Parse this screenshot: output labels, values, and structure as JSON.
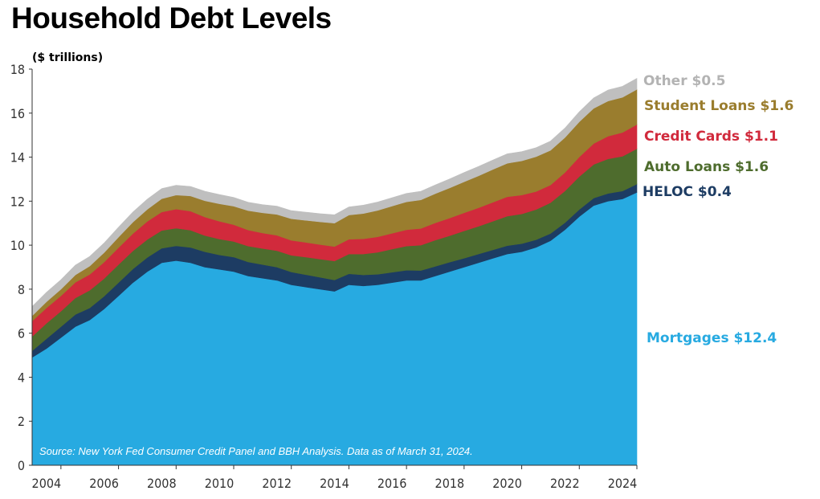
{
  "title": "Household Debt Levels",
  "units_label": "($ trillions)",
  "source_note": "Source: New York Fed Consumer Credit Panel and BBH Analysis. Data as of March 31, 2024.",
  "end_labels": [
    {
      "text": "Other $0.5",
      "color": "#b3b3b3"
    },
    {
      "text": "Student Loans $1.6",
      "color": "#9a7d2e"
    },
    {
      "text": "Credit Cards $1.1",
      "color": "#d12a3c"
    },
    {
      "text": "Auto Loans $1.6",
      "color": "#4e6c2d"
    },
    {
      "text": "HELOC  $0.4",
      "color": "#1d3c63"
    },
    {
      "text": "Mortgages $12.4",
      "color": "#27aae1"
    }
  ],
  "chart_data": {
    "type": "area",
    "stacked": true,
    "x": [
      2003.0,
      2003.5,
      2004.0,
      2004.5,
      2005.0,
      2005.5,
      2006.0,
      2006.5,
      2007.0,
      2007.5,
      2008.0,
      2008.5,
      2009.0,
      2009.5,
      2010.0,
      2010.5,
      2011.0,
      2011.5,
      2012.0,
      2012.5,
      2013.0,
      2013.5,
      2014.0,
      2014.5,
      2015.0,
      2015.5,
      2016.0,
      2016.5,
      2017.0,
      2017.5,
      2018.0,
      2018.5,
      2019.0,
      2019.5,
      2020.0,
      2020.5,
      2021.0,
      2021.5,
      2022.0,
      2022.5,
      2023.0,
      2023.5,
      2024.0
    ],
    "x_ticks": [
      2004,
      2006,
      2008,
      2010,
      2012,
      2014,
      2016,
      2018,
      2020,
      2022,
      2024
    ],
    "y_ticks": [
      0,
      2,
      4,
      6,
      8,
      10,
      12,
      14,
      16,
      18
    ],
    "xlim": [
      2003.0,
      2024.0
    ],
    "ylim": [
      0,
      18
    ],
    "xlabel": "",
    "ylabel": "($ trillions)",
    "grid": false,
    "legend": "labels at right end of each series",
    "series": [
      {
        "name": "Mortgages",
        "color": "#27aae1",
        "values": [
          4.9,
          5.3,
          5.8,
          6.3,
          6.6,
          7.1,
          7.7,
          8.3,
          8.8,
          9.2,
          9.3,
          9.2,
          9.0,
          8.9,
          8.8,
          8.6,
          8.5,
          8.4,
          8.2,
          8.1,
          8.0,
          7.9,
          8.2,
          8.15,
          8.2,
          8.3,
          8.4,
          8.4,
          8.6,
          8.8,
          9.0,
          9.2,
          9.4,
          9.6,
          9.7,
          9.9,
          10.2,
          10.7,
          11.3,
          11.8,
          12.0,
          12.1,
          12.4
        ]
      },
      {
        "name": "HELOC",
        "color": "#1d3c63",
        "values": [
          0.3,
          0.45,
          0.5,
          0.55,
          0.55,
          0.58,
          0.6,
          0.62,
          0.64,
          0.66,
          0.67,
          0.7,
          0.7,
          0.66,
          0.66,
          0.64,
          0.62,
          0.6,
          0.58,
          0.56,
          0.54,
          0.52,
          0.5,
          0.5,
          0.48,
          0.47,
          0.46,
          0.45,
          0.44,
          0.43,
          0.41,
          0.4,
          0.39,
          0.38,
          0.37,
          0.35,
          0.33,
          0.32,
          0.32,
          0.34,
          0.35,
          0.36,
          0.38
        ]
      },
      {
        "name": "Auto Loans",
        "color": "#4e6c2d",
        "values": [
          0.65,
          0.7,
          0.7,
          0.75,
          0.8,
          0.8,
          0.82,
          0.82,
          0.82,
          0.81,
          0.8,
          0.78,
          0.74,
          0.72,
          0.71,
          0.72,
          0.73,
          0.75,
          0.76,
          0.8,
          0.83,
          0.86,
          0.9,
          0.95,
          1.0,
          1.05,
          1.1,
          1.15,
          1.19,
          1.2,
          1.24,
          1.26,
          1.3,
          1.34,
          1.35,
          1.37,
          1.4,
          1.44,
          1.5,
          1.53,
          1.57,
          1.58,
          1.6
        ]
      },
      {
        "name": "Credit Cards",
        "color": "#d12a3c",
        "values": [
          0.7,
          0.7,
          0.7,
          0.71,
          0.72,
          0.75,
          0.77,
          0.79,
          0.82,
          0.84,
          0.87,
          0.87,
          0.84,
          0.81,
          0.76,
          0.73,
          0.7,
          0.7,
          0.68,
          0.67,
          0.66,
          0.66,
          0.67,
          0.69,
          0.7,
          0.72,
          0.74,
          0.76,
          0.78,
          0.8,
          0.82,
          0.84,
          0.86,
          0.88,
          0.86,
          0.82,
          0.8,
          0.84,
          0.89,
          0.95,
          1.03,
          1.08,
          1.1
        ]
      },
      {
        "name": "Student Loans",
        "color": "#9a7d2e",
        "values": [
          0.24,
          0.28,
          0.3,
          0.34,
          0.38,
          0.43,
          0.48,
          0.52,
          0.55,
          0.6,
          0.64,
          0.69,
          0.74,
          0.79,
          0.84,
          0.88,
          0.92,
          0.95,
          0.98,
          1.0,
          1.03,
          1.06,
          1.1,
          1.15,
          1.2,
          1.24,
          1.27,
          1.3,
          1.33,
          1.37,
          1.41,
          1.45,
          1.49,
          1.52,
          1.55,
          1.58,
          1.58,
          1.59,
          1.6,
          1.6,
          1.6,
          1.6,
          1.6
        ]
      },
      {
        "name": "Other",
        "color": "#bfbfbf",
        "values": [
          0.42,
          0.43,
          0.43,
          0.44,
          0.44,
          0.44,
          0.45,
          0.46,
          0.46,
          0.46,
          0.44,
          0.43,
          0.43,
          0.42,
          0.4,
          0.38,
          0.37,
          0.37,
          0.37,
          0.37,
          0.37,
          0.38,
          0.37,
          0.38,
          0.38,
          0.38,
          0.38,
          0.39,
          0.4,
          0.41,
          0.42,
          0.43,
          0.43,
          0.43,
          0.42,
          0.41,
          0.42,
          0.43,
          0.45,
          0.47,
          0.5,
          0.5,
          0.5
        ]
      }
    ]
  }
}
